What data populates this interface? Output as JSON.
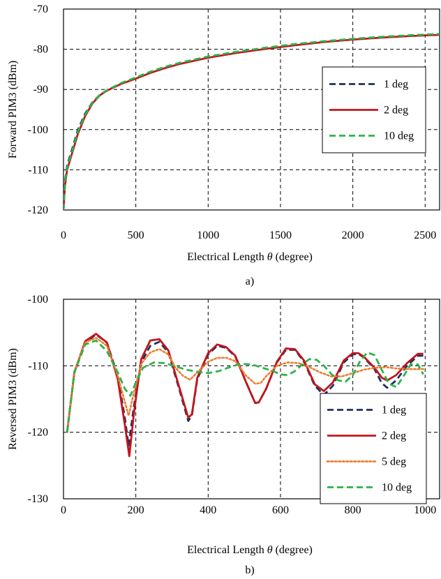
{
  "colors": {
    "s1": "#1f2f5f",
    "s2": "#c0161c",
    "s5": "#ed7d31",
    "s10": "#2db34a",
    "grid": "#000000",
    "frame": "#000000"
  },
  "chart_data": [
    {
      "type": "line",
      "caption": "a)",
      "xlabel_pre": "Electrical Length ",
      "xlabel_sym": "θ",
      "xlabel_post": " (degree)",
      "ylabel": "Forward PIM3 (dBm)",
      "xlim": [
        0,
        2600
      ],
      "ylim": [
        -120,
        -70
      ],
      "xticks": [
        0,
        500,
        1000,
        1500,
        2000,
        2500
      ],
      "yticks": [
        -120,
        -110,
        -100,
        -90,
        -80,
        -70
      ],
      "xticklabels": [
        "0",
        "500",
        "1000",
        "1500",
        "2000",
        "2500"
      ],
      "yticklabels": [
        "-120",
        "-110",
        "-100",
        "-90",
        "-80",
        "-70"
      ],
      "grid": true,
      "legend_position": "right",
      "series": [
        {
          "name": "1 deg",
          "style": "dash",
          "color_key": "s1",
          "x": [
            0,
            10,
            25,
            50,
            100,
            150,
            200,
            250,
            300,
            400,
            500,
            600,
            700,
            800,
            900,
            1000,
            1200,
            1400,
            1600,
            1800,
            2000,
            2200,
            2400,
            2600
          ],
          "y": [
            -120,
            -113,
            -109,
            -106,
            -100,
            -96,
            -93.2,
            -91.4,
            -90.2,
            -88.5,
            -87.2,
            -85.8,
            -84.6,
            -83.6,
            -82.8,
            -82.0,
            -80.8,
            -79.8,
            -78.9,
            -78.1,
            -77.5,
            -77.0,
            -76.6,
            -76.3
          ]
        },
        {
          "name": "2 deg",
          "style": "solid",
          "color_key": "s2",
          "x": [
            0,
            10,
            25,
            50,
            100,
            150,
            200,
            250,
            300,
            400,
            500,
            600,
            700,
            800,
            900,
            1000,
            1200,
            1400,
            1600,
            1800,
            2000,
            2200,
            2400,
            2600
          ],
          "y": [
            -120,
            -114,
            -110,
            -107,
            -101,
            -96.6,
            -93.5,
            -91.5,
            -90.3,
            -88.6,
            -87.3,
            -85.9,
            -84.7,
            -83.7,
            -82.9,
            -82.1,
            -80.9,
            -79.9,
            -79.0,
            -78.2,
            -77.6,
            -77.1,
            -76.7,
            -76.4
          ]
        },
        {
          "name": "10 deg",
          "style": "dash",
          "color_key": "s10",
          "x": [
            0,
            10,
            25,
            50,
            100,
            150,
            200,
            250,
            300,
            400,
            500,
            600,
            700,
            800,
            900,
            1000,
            1200,
            1400,
            1600,
            1800,
            2000,
            2200,
            2400,
            2600
          ],
          "y": [
            -120,
            -113.5,
            -109.5,
            -106.5,
            -100.5,
            -96.3,
            -93.3,
            -91.4,
            -90.2,
            -88.4,
            -87.0,
            -85.6,
            -84.4,
            -83.4,
            -82.6,
            -81.8,
            -80.6,
            -79.6,
            -78.7,
            -78.0,
            -77.4,
            -76.9,
            -76.5,
            -76.2
          ]
        }
      ]
    },
    {
      "type": "line",
      "caption": "b)",
      "xlabel_pre": "Electrical Length ",
      "xlabel_sym": "θ",
      "xlabel_post": " (degree)",
      "ylabel": "Reversed PIM3 (dBm)",
      "xlim": [
        0,
        1040
      ],
      "ylim": [
        -130,
        -100
      ],
      "xticks": [
        0,
        200,
        400,
        600,
        800,
        1000
      ],
      "yticks": [
        -130,
        -120,
        -110,
        -100
      ],
      "xticklabels": [
        "0",
        "200",
        "400",
        "600",
        "800",
        "1000"
      ],
      "yticklabels": [
        "-130",
        "-120",
        "-110",
        "-100"
      ],
      "grid": true,
      "legend_position": "bottom-right",
      "series": [
        {
          "name": "1 deg",
          "style": "dash",
          "color_key": "s1",
          "x": [
            10,
            30,
            60,
            90,
            120,
            150,
            170,
            180,
            195,
            215,
            240,
            265,
            290,
            320,
            345,
            355,
            370,
            400,
            425,
            450,
            475,
            505,
            530,
            540,
            560,
            590,
            615,
            640,
            665,
            695,
            720,
            745,
            775,
            800,
            815,
            830,
            860,
            880,
            895,
            920,
            950,
            980,
            995
          ],
          "y": [
            -120,
            -111,
            -106.5,
            -105.3,
            -106.5,
            -111.5,
            -118,
            -122,
            -116,
            -109.5,
            -107,
            -106.4,
            -108,
            -113.5,
            -118.3,
            -117.5,
            -112,
            -108.3,
            -107,
            -107.3,
            -108.6,
            -112.5,
            -115.6,
            -115.5,
            -113.5,
            -109.5,
            -107.6,
            -107.6,
            -109.4,
            -113,
            -114.4,
            -113,
            -109.5,
            -108.3,
            -108.2,
            -108.7,
            -110.5,
            -112.6,
            -113.3,
            -112.2,
            -110,
            -108.5,
            -108.5
          ]
        },
        {
          "name": "2 deg",
          "style": "solid",
          "color_key": "s2",
          "x": [
            10,
            30,
            60,
            90,
            120,
            150,
            170,
            182,
            195,
            215,
            240,
            265,
            290,
            320,
            345,
            355,
            370,
            400,
            425,
            450,
            475,
            505,
            530,
            540,
            560,
            590,
            615,
            640,
            665,
            695,
            720,
            745,
            775,
            800,
            815,
            830,
            860,
            880,
            895,
            920,
            950,
            980,
            995
          ],
          "y": [
            -120,
            -111,
            -106.3,
            -105.2,
            -106.5,
            -112,
            -119,
            -123.6,
            -117,
            -109,
            -106.2,
            -106,
            -107.7,
            -113.2,
            -117.8,
            -117.3,
            -111.8,
            -108.1,
            -106.8,
            -107.2,
            -108.5,
            -112.5,
            -115.6,
            -115.5,
            -113.5,
            -109.4,
            -107.4,
            -107.5,
            -109.2,
            -112.8,
            -113.8,
            -112.5,
            -109.2,
            -108.1,
            -108.1,
            -108.6,
            -110.3,
            -111.8,
            -112.2,
            -111.4,
            -109.6,
            -108.2,
            -108.2
          ]
        },
        {
          "name": "5 deg",
          "style": "dot",
          "color_key": "s5",
          "x": [
            10,
            30,
            60,
            90,
            120,
            150,
            170,
            180,
            195,
            215,
            240,
            265,
            290,
            310,
            330,
            350,
            370,
            400,
            425,
            450,
            475,
            505,
            530,
            545,
            560,
            590,
            620,
            650,
            680,
            710,
            740,
            770,
            800,
            830,
            860,
            890,
            920,
            950,
            995
          ],
          "y": [
            -120,
            -110.8,
            -106.5,
            -105.8,
            -107,
            -111.5,
            -115.5,
            -117.5,
            -114,
            -109.7,
            -108,
            -107.5,
            -108.3,
            -110.3,
            -111.5,
            -112.1,
            -111,
            -109.4,
            -108.8,
            -108.8,
            -109.3,
            -111.5,
            -112.7,
            -112.6,
            -111.6,
            -110,
            -109.5,
            -109.6,
            -110.2,
            -111,
            -111.6,
            -111.6,
            -111.1,
            -110.6,
            -110.3,
            -110.2,
            -110.4,
            -110.5,
            -110.5
          ]
        },
        {
          "name": "10 deg",
          "style": "dash",
          "color_key": "s10",
          "x": [
            10,
            30,
            60,
            90,
            120,
            150,
            170,
            185,
            200,
            220,
            250,
            280,
            310,
            340,
            370,
            400,
            430,
            460,
            490,
            520,
            550,
            580,
            600,
            620,
            640,
            660,
            680,
            700,
            720,
            740,
            760,
            780,
            800,
            820,
            840,
            860,
            880,
            900,
            920,
            940,
            960,
            980,
            995
          ],
          "y": [
            -120,
            -111,
            -106.8,
            -106.2,
            -107.8,
            -111,
            -113.5,
            -114.5,
            -112.5,
            -110.3,
            -109.5,
            -109.6,
            -110.1,
            -110.6,
            -110.9,
            -111.1,
            -110.8,
            -110.2,
            -109.7,
            -109.8,
            -110.3,
            -110.8,
            -111.3,
            -111.4,
            -110.8,
            -109.8,
            -109,
            -109.1,
            -110,
            -111.2,
            -112.2,
            -112.4,
            -111.4,
            -109.3,
            -108,
            -108.4,
            -110.6,
            -112.7,
            -113.2,
            -111.6,
            -109.8,
            -109.8,
            -111.3
          ]
        }
      ]
    }
  ]
}
